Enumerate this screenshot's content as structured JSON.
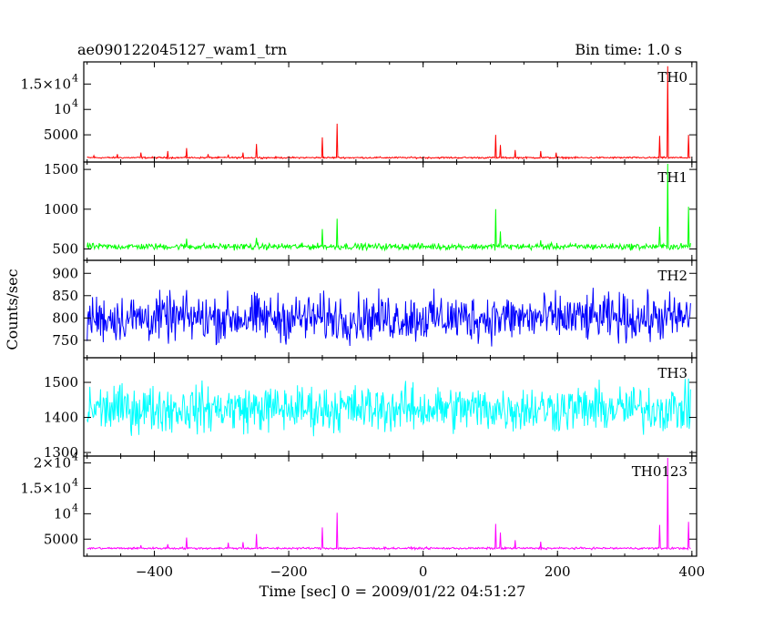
{
  "chart_data": {
    "type": "line",
    "title": "ae090122045127_wam1_trn",
    "bin_time_label": "Bin time: 1.0 s",
    "ylabel": "Counts/sec",
    "xlabel": "Time [sec] 0 = 2009/01/22 04:51:27",
    "xlim": [
      -505,
      407
    ],
    "x_ticks": [
      -400,
      -200,
      0,
      200,
      400
    ],
    "panels": [
      {
        "name": "TH0",
        "color": "#ff0000",
        "ylim": [
          0,
          19000
        ],
        "y_ticks": [
          {
            "value": 5000,
            "label": "5000",
            "exp": ""
          },
          {
            "value": 10000,
            "label": "10",
            "exp": "4"
          },
          {
            "value": 15000,
            "label": "1.5×10",
            "exp": "4"
          }
        ],
        "baseline": 500,
        "noise": 120,
        "spikes": [
          [
            -490,
            900
          ],
          [
            -455,
            1200
          ],
          [
            -420,
            1500
          ],
          [
            -380,
            1800
          ],
          [
            -352,
            2400
          ],
          [
            -320,
            1200
          ],
          [
            -290,
            1100
          ],
          [
            -268,
            1500
          ],
          [
            -248,
            3200
          ],
          [
            -150,
            4500
          ],
          [
            -128,
            7200
          ],
          [
            108,
            5000
          ],
          [
            115,
            3000
          ],
          [
            137,
            2000
          ],
          [
            175,
            1800
          ],
          [
            198,
            1500
          ],
          [
            352,
            4800
          ],
          [
            364,
            18500
          ],
          [
            395,
            5000
          ]
        ]
      },
      {
        "name": "TH1",
        "color": "#00ff00",
        "ylim": [
          380,
          1570
        ],
        "y_ticks": [
          {
            "value": 500,
            "label": "500",
            "exp": ""
          },
          {
            "value": 1000,
            "label": "1000",
            "exp": ""
          },
          {
            "value": 1500,
            "label": "1500",
            "exp": ""
          }
        ],
        "baseline": 530,
        "noise": 30,
        "spikes": [
          [
            -352,
            630
          ],
          [
            -248,
            640
          ],
          [
            -150,
            750
          ],
          [
            -128,
            880
          ],
          [
            108,
            1000
          ],
          [
            115,
            720
          ],
          [
            175,
            610
          ],
          [
            352,
            780
          ],
          [
            364,
            1570
          ],
          [
            395,
            1030
          ]
        ]
      },
      {
        "name": "TH2",
        "color": "#0000ff",
        "ylim": [
          715,
          925
        ],
        "y_ticks": [
          {
            "value": 750,
            "label": "750",
            "exp": ""
          },
          {
            "value": 800,
            "label": "800",
            "exp": ""
          },
          {
            "value": 850,
            "label": "850",
            "exp": ""
          },
          {
            "value": 900,
            "label": "900",
            "exp": ""
          }
        ],
        "baseline": 800,
        "noise": 40,
        "spikes": []
      },
      {
        "name": "TH3",
        "color": "#00ffff",
        "ylim": [
          1295,
          1565
        ],
        "y_ticks": [
          {
            "value": 1300,
            "label": "1300",
            "exp": ""
          },
          {
            "value": 1400,
            "label": "1400",
            "exp": ""
          },
          {
            "value": 1500,
            "label": "1500",
            "exp": ""
          }
        ],
        "baseline": 1425,
        "noise": 50,
        "spikes": []
      },
      {
        "name": "TH0123",
        "color": "#ff00ff",
        "ylim": [
          2000,
          21000
        ],
        "y_ticks": [
          {
            "value": 5000,
            "label": "5000",
            "exp": ""
          },
          {
            "value": 10000,
            "label": "10",
            "exp": "4"
          },
          {
            "value": 15000,
            "label": "1.5×10",
            "exp": "4"
          },
          {
            "value": 20000,
            "label": "2×10",
            "exp": "4"
          }
        ],
        "baseline": 3200,
        "noise": 150,
        "spikes": [
          [
            -420,
            3800
          ],
          [
            -380,
            4000
          ],
          [
            -352,
            5300
          ],
          [
            -290,
            4300
          ],
          [
            -268,
            4400
          ],
          [
            -248,
            6000
          ],
          [
            -150,
            7300
          ],
          [
            -128,
            10200
          ],
          [
            108,
            8000
          ],
          [
            115,
            6300
          ],
          [
            137,
            4800
          ],
          [
            175,
            4500
          ],
          [
            352,
            7800
          ],
          [
            364,
            21000
          ],
          [
            395,
            8400
          ]
        ]
      }
    ]
  }
}
